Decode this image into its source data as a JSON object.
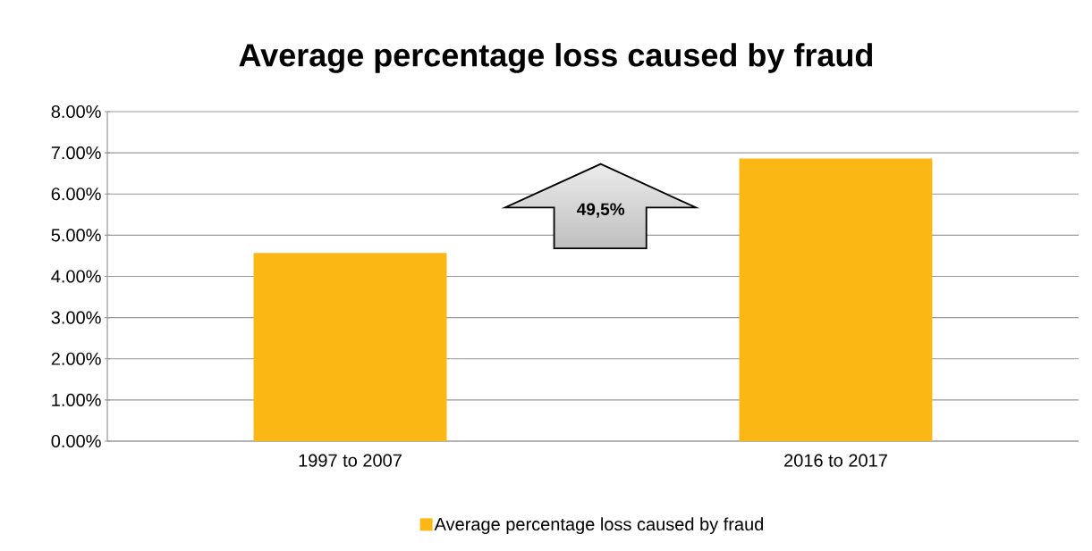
{
  "chart_data": {
    "type": "bar",
    "title": "Average percentage loss caused by fraud",
    "categories": [
      "1997 to 2007",
      "2016 to 2017"
    ],
    "series": [
      {
        "name": "Average percentage loss caused by fraud",
        "color": "#fbb814",
        "values": [
          4.57,
          6.86
        ]
      }
    ],
    "ylim": [
      0,
      8
    ],
    "yticks": [
      {
        "value": 0,
        "label": "0.00%"
      },
      {
        "value": 1,
        "label": "1.00%"
      },
      {
        "value": 2,
        "label": "2.00%"
      },
      {
        "value": 3,
        "label": "3.00%"
      },
      {
        "value": 4,
        "label": "4.00%"
      },
      {
        "value": 5,
        "label": "5.00%"
      },
      {
        "value": 6,
        "label": "6.00%"
      },
      {
        "value": 7,
        "label": "7.00%"
      },
      {
        "value": 8,
        "label": "8.00%"
      }
    ],
    "grid": "y",
    "legend": "bottom",
    "annotations": [
      "49,5%"
    ]
  }
}
